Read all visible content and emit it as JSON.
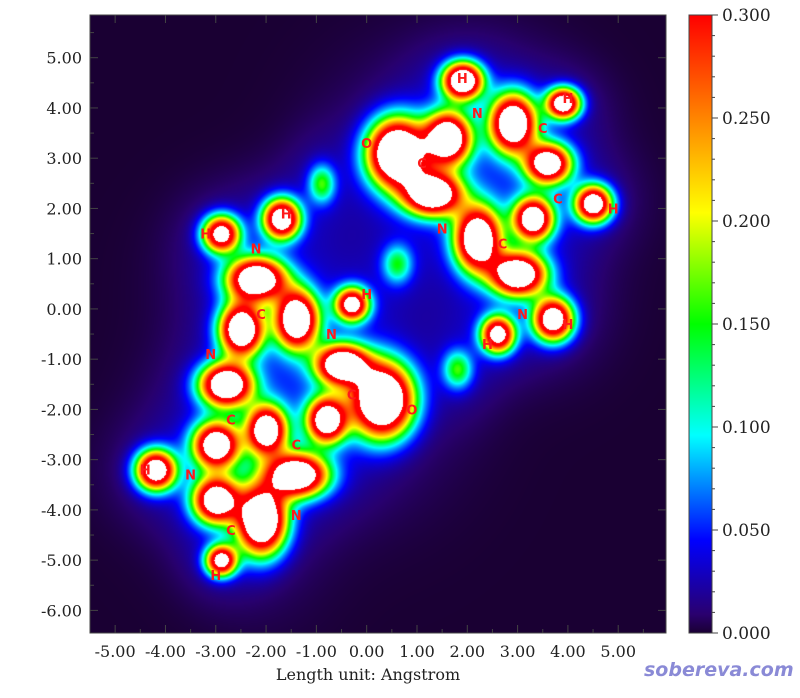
{
  "chart_data": {
    "type": "heatmap",
    "xlabel": "Length unit: Angstrom",
    "xlim": [
      -5.5,
      5.95
    ],
    "ylim": [
      -6.45,
      5.85
    ],
    "x_ticks": [
      -5.0,
      -4.0,
      -3.0,
      -2.0,
      -1.0,
      0.0,
      1.0,
      2.0,
      3.0,
      4.0,
      5.0
    ],
    "x_tick_labels": [
      "-5.00",
      "-4.00",
      "-3.00",
      "-2.00",
      "-1.00",
      "0.00",
      "1.00",
      "2.00",
      "3.00",
      "4.00",
      "5.00"
    ],
    "y_ticks": [
      5.0,
      4.0,
      3.0,
      2.0,
      1.0,
      0.0,
      -1.0,
      -2.0,
      -3.0,
      -4.0,
      -5.0,
      -6.0
    ],
    "y_tick_labels": [
      "5.00",
      "4.00",
      "3.00",
      "2.00",
      "1.00",
      "0.00",
      "-1.00",
      "-2.00",
      "-3.00",
      "-4.00",
      "-5.00",
      "-6.00"
    ],
    "colorbar": {
      "range": [
        0.0,
        0.3
      ],
      "ticks": [
        0.0,
        0.05,
        0.1,
        0.15,
        0.2,
        0.25,
        0.3
      ],
      "tick_labels": [
        "0.000",
        "0.050",
        "0.100",
        "0.150",
        "0.200",
        "0.250",
        "0.300"
      ],
      "colors": [
        "#1a0033",
        "#0000ff",
        "#00ffff",
        "#00ff00",
        "#ffff00",
        "#ff7f00",
        "#ff0000"
      ]
    },
    "atoms": [
      {
        "label": "H",
        "x": 1.9,
        "y": 4.6
      },
      {
        "label": "H",
        "x": 4.0,
        "y": 4.2
      },
      {
        "label": "N",
        "x": 2.2,
        "y": 3.9
      },
      {
        "label": "C",
        "x": 3.5,
        "y": 3.6
      },
      {
        "label": "O",
        "x": 0.0,
        "y": 3.3
      },
      {
        "label": "C",
        "x": 1.1,
        "y": 2.9
      },
      {
        "label": "C",
        "x": 3.8,
        "y": 2.2
      },
      {
        "label": "H",
        "x": 4.9,
        "y": 2.0
      },
      {
        "label": "N",
        "x": 1.5,
        "y": 1.6
      },
      {
        "label": "C",
        "x": 2.7,
        "y": 1.3
      },
      {
        "label": "H",
        "x": -1.6,
        "y": 1.9
      },
      {
        "label": "H",
        "x": -3.2,
        "y": 1.5
      },
      {
        "label": "N",
        "x": -2.2,
        "y": 1.2
      },
      {
        "label": "H",
        "x": 0.0,
        "y": 0.3
      },
      {
        "label": "N",
        "x": 3.1,
        "y": -0.1
      },
      {
        "label": "H",
        "x": 4.0,
        "y": -0.3
      },
      {
        "label": "C",
        "x": -2.1,
        "y": -0.1
      },
      {
        "label": "N",
        "x": -0.7,
        "y": -0.5
      },
      {
        "label": "H",
        "x": 2.4,
        "y": -0.7
      },
      {
        "label": "N",
        "x": -3.1,
        "y": -0.9
      },
      {
        "label": "C",
        "x": -0.3,
        "y": -1.7
      },
      {
        "label": "O",
        "x": 0.9,
        "y": -2.0
      },
      {
        "label": "C",
        "x": -2.7,
        "y": -2.2
      },
      {
        "label": "C",
        "x": -1.4,
        "y": -2.7
      },
      {
        "label": "H",
        "x": -4.4,
        "y": -3.2
      },
      {
        "label": "N",
        "x": -3.5,
        "y": -3.3
      },
      {
        "label": "N",
        "x": -1.4,
        "y": -4.1
      },
      {
        "label": "C",
        "x": -2.7,
        "y": -4.4
      },
      {
        "label": "H",
        "x": -3.0,
        "y": -5.3
      }
    ],
    "density_peaks": [
      {
        "x": 1.9,
        "y": 4.55,
        "w": 0.26,
        "h": 0.24,
        "amp": 0.6
      },
      {
        "x": 3.9,
        "y": 4.1,
        "w": 0.22,
        "h": 0.2,
        "amp": 0.55
      },
      {
        "x": 1.6,
        "y": 3.4,
        "w": 0.3,
        "h": 0.34,
        "amp": 0.6
      },
      {
        "x": 2.9,
        "y": 3.7,
        "w": 0.3,
        "h": 0.38,
        "amp": 0.6
      },
      {
        "x": 0.6,
        "y": 3.1,
        "w": 0.38,
        "h": 0.44,
        "amp": 0.7
      },
      {
        "x": 3.6,
        "y": 2.9,
        "w": 0.3,
        "h": 0.26,
        "amp": 0.55
      },
      {
        "x": 1.3,
        "y": 2.3,
        "w": 0.38,
        "h": 0.28,
        "amp": 0.6
      },
      {
        "x": 4.5,
        "y": 2.1,
        "w": 0.24,
        "h": 0.24,
        "amp": 0.55
      },
      {
        "x": 3.3,
        "y": 1.8,
        "w": 0.26,
        "h": 0.28,
        "amp": 0.55
      },
      {
        "x": 2.2,
        "y": 1.4,
        "w": 0.3,
        "h": 0.42,
        "amp": 0.6
      },
      {
        "x": 3.0,
        "y": 0.7,
        "w": 0.36,
        "h": 0.28,
        "amp": 0.6
      },
      {
        "x": 3.7,
        "y": -0.2,
        "w": 0.26,
        "h": 0.28,
        "amp": 0.55
      },
      {
        "x": 2.6,
        "y": -0.5,
        "w": 0.22,
        "h": 0.24,
        "amp": 0.5
      },
      {
        "x": -1.7,
        "y": 1.8,
        "w": 0.24,
        "h": 0.26,
        "amp": 0.55
      },
      {
        "x": -2.9,
        "y": 1.5,
        "w": 0.24,
        "h": 0.24,
        "amp": 0.5
      },
      {
        "x": -2.2,
        "y": 0.6,
        "w": 0.38,
        "h": 0.28,
        "amp": 0.6
      },
      {
        "x": -2.5,
        "y": -0.4,
        "w": 0.28,
        "h": 0.34,
        "amp": 0.6
      },
      {
        "x": -1.4,
        "y": -0.2,
        "w": 0.28,
        "h": 0.38,
        "amp": 0.6
      },
      {
        "x": -0.3,
        "y": 0.1,
        "w": 0.22,
        "h": 0.22,
        "amp": 0.5
      },
      {
        "x": -0.5,
        "y": -1.1,
        "w": 0.34,
        "h": 0.26,
        "amp": 0.6
      },
      {
        "x": -2.8,
        "y": -1.5,
        "w": 0.34,
        "h": 0.28,
        "amp": 0.6
      },
      {
        "x": 0.3,
        "y": -1.8,
        "w": 0.4,
        "h": 0.48,
        "amp": 0.7
      },
      {
        "x": -0.8,
        "y": -2.2,
        "w": 0.26,
        "h": 0.3,
        "amp": 0.55
      },
      {
        "x": -2.0,
        "y": -2.4,
        "w": 0.26,
        "h": 0.32,
        "amp": 0.55
      },
      {
        "x": -3.0,
        "y": -2.7,
        "w": 0.3,
        "h": 0.3,
        "amp": 0.55
      },
      {
        "x": -1.4,
        "y": -3.3,
        "w": 0.4,
        "h": 0.28,
        "amp": 0.6
      },
      {
        "x": -4.2,
        "y": -3.2,
        "w": 0.26,
        "h": 0.26,
        "amp": 0.55
      },
      {
        "x": -3.0,
        "y": -3.8,
        "w": 0.3,
        "h": 0.3,
        "amp": 0.55
      },
      {
        "x": -2.1,
        "y": -4.2,
        "w": 0.32,
        "h": 0.44,
        "amp": 0.65
      },
      {
        "x": -2.9,
        "y": -5.0,
        "w": 0.2,
        "h": 0.2,
        "amp": 0.5
      }
    ],
    "faint_peaks": [
      {
        "x": -0.9,
        "y": 2.5,
        "w": 0.18,
        "h": 0.26,
        "amp": 0.16
      },
      {
        "x": 0.6,
        "y": 0.9,
        "w": 0.2,
        "h": 0.26,
        "amp": 0.14
      },
      {
        "x": 1.8,
        "y": -1.2,
        "w": 0.2,
        "h": 0.26,
        "amp": 0.16
      }
    ]
  },
  "watermark": "sobereva.com"
}
